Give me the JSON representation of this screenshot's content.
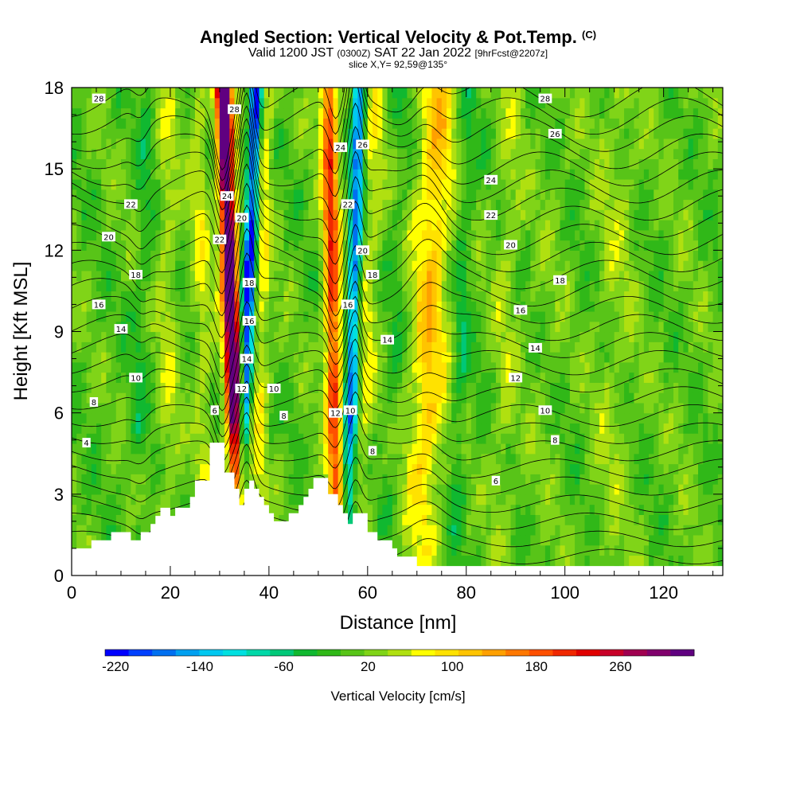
{
  "header": {
    "title_main": "Angled Section: Vertical Velocity & Pot.Temp.",
    "title_suffix": "(C)",
    "valid_prefix": "Valid 1200 JST",
    "valid_zulu": "(0300Z)",
    "valid_date": "SAT 22 Jan 2022",
    "forecast": "[9hrFcst@2207z]",
    "slice": "slice X,Y= 92,59@135°"
  },
  "chart_data": {
    "type": "heatmap",
    "xlabel": "Distance [nm]",
    "ylabel": "Height [Kft MSL]",
    "xlim": [
      0,
      132
    ],
    "ylim": [
      0,
      18
    ],
    "x_ticks": [
      0,
      20,
      40,
      60,
      80,
      100,
      120
    ],
    "y_ticks": [
      0,
      3,
      6,
      9,
      12,
      15,
      18
    ],
    "colorbar": {
      "label": "Vertical Velocity [cm/s]",
      "min": -230,
      "max": 330,
      "step": 20,
      "tick_values": [
        -220,
        -140,
        -60,
        20,
        100,
        180,
        260
      ],
      "tick_labels": [
        "-220",
        "-140",
        "-60",
        "20",
        "100",
        "180",
        "260"
      ],
      "colors": [
        "#0000ff",
        "#0040ff",
        "#0070f0",
        "#00a0f0",
        "#00c8f0",
        "#00e0e0",
        "#00d8a8",
        "#00c878",
        "#10b830",
        "#30b818",
        "#58c418",
        "#80d418",
        "#b0e010",
        "#ffff00",
        "#ffe200",
        "#ffc400",
        "#ffa000",
        "#ff7800",
        "#ff5000",
        "#f02800",
        "#e00000",
        "#c80028",
        "#a00050",
        "#80006c",
        "#600080"
      ]
    },
    "background_value": -20,
    "plumes": [
      {
        "x": 32.5,
        "v": 310,
        "w": 1.6,
        "lean": -0.2
      },
      {
        "x": 35.5,
        "v": -215,
        "w": 1.3,
        "lean": 0.22
      },
      {
        "x": 38.5,
        "v": 40,
        "w": 1.5,
        "lean": 0.1
      },
      {
        "x": 26.5,
        "v": 25,
        "w": 1.8,
        "lean": -0.1
      },
      {
        "x": 14.0,
        "v": -45,
        "w": 1.6,
        "lean": 0.15
      },
      {
        "x": 19.5,
        "v": 15,
        "w": 2.0,
        "lean": 0.0
      },
      {
        "x": 53.0,
        "v": 155,
        "w": 1.7,
        "lean": -0.1
      },
      {
        "x": 57.0,
        "v": -175,
        "w": 1.3,
        "lean": 0.15
      },
      {
        "x": 60.0,
        "v": 30,
        "w": 1.8,
        "lean": 0.2
      },
      {
        "x": 65.5,
        "v": -40,
        "w": 1.6,
        "lean": 0.2
      },
      {
        "x": 72.5,
        "v": 75,
        "w": 3.6,
        "lean": 0.2
      },
      {
        "x": 79.0,
        "v": -55,
        "w": 1.7,
        "lean": 0.15
      },
      {
        "x": 88.0,
        "v": 10,
        "w": 2.5,
        "lean": 0.15
      },
      {
        "x": 96.0,
        "v": -10,
        "w": 3.5,
        "lean": 0.2
      },
      {
        "x": 110.0,
        "v": 5,
        "w": 4.0,
        "lean": 0.1
      },
      {
        "x": 124.0,
        "v": -15,
        "w": 3.0,
        "lean": 0.1
      }
    ],
    "terrain": [
      [
        0,
        1
      ],
      [
        4,
        1
      ],
      [
        4,
        1.3
      ],
      [
        8,
        1.3
      ],
      [
        8,
        1.6
      ],
      [
        12,
        1.6
      ],
      [
        12,
        1.3
      ],
      [
        14,
        1.3
      ],
      [
        14,
        1.6
      ],
      [
        16,
        1.6
      ],
      [
        16,
        1.9
      ],
      [
        17,
        1.9
      ],
      [
        17,
        2.2
      ],
      [
        18,
        2.2
      ],
      [
        18,
        2.5
      ],
      [
        20,
        2.5
      ],
      [
        20,
        2.2
      ],
      [
        21,
        2.2
      ],
      [
        21,
        2.5
      ],
      [
        24,
        2.5
      ],
      [
        24,
        2.9
      ],
      [
        25,
        2.9
      ],
      [
        25,
        3.5
      ],
      [
        28,
        3.5
      ],
      [
        28,
        4.9
      ],
      [
        31,
        4.9
      ],
      [
        31,
        3.8
      ],
      [
        33,
        3.8
      ],
      [
        33,
        3.2
      ],
      [
        34,
        3.2
      ],
      [
        34,
        2.6
      ],
      [
        35,
        2.6
      ],
      [
        35,
        3.2
      ],
      [
        36,
        3.2
      ],
      [
        36,
        3.5
      ],
      [
        37,
        3.5
      ],
      [
        37,
        3.2
      ],
      [
        38,
        3.2
      ],
      [
        38,
        2.9
      ],
      [
        39,
        2.9
      ],
      [
        39,
        2.6
      ],
      [
        40,
        2.6
      ],
      [
        40,
        2.3
      ],
      [
        41,
        2.3
      ],
      [
        41,
        2.0
      ],
      [
        44,
        2.0
      ],
      [
        44,
        2.3
      ],
      [
        46,
        2.3
      ],
      [
        46,
        2.6
      ],
      [
        47,
        2.6
      ],
      [
        47,
        2.9
      ],
      [
        48,
        2.9
      ],
      [
        48,
        3.2
      ],
      [
        49,
        3.2
      ],
      [
        49,
        3.6
      ],
      [
        52,
        3.6
      ],
      [
        52,
        3.0
      ],
      [
        54,
        3.0
      ],
      [
        54,
        2.6
      ],
      [
        55,
        2.6
      ],
      [
        55,
        2.3
      ],
      [
        56,
        2.3
      ],
      [
        56,
        1.9
      ],
      [
        57,
        1.9
      ],
      [
        57,
        2.3
      ],
      [
        60,
        2.3
      ],
      [
        60,
        1.6
      ],
      [
        62,
        1.6
      ],
      [
        62,
        1.3
      ],
      [
        65,
        1.3
      ],
      [
        65,
        1.0
      ],
      [
        66,
        1.0
      ],
      [
        66,
        0.7
      ],
      [
        70,
        0.7
      ],
      [
        70,
        0.35
      ],
      [
        132,
        0.35
      ]
    ],
    "contour_levels": [
      2,
      3,
      4,
      5,
      6,
      7,
      8,
      9,
      10,
      11,
      12,
      13,
      14,
      15,
      16,
      17,
      18,
      19,
      20,
      21,
      22,
      23,
      24,
      25,
      26,
      27,
      28
    ],
    "labeled_levels": [
      4,
      6,
      8,
      10,
      12,
      14,
      16,
      18,
      20,
      22,
      24,
      26,
      28
    ],
    "contour_labels": [
      {
        "text": "28",
        "x": 5.5,
        "y": 17.6
      },
      {
        "text": "28",
        "x": 33.0,
        "y": 17.2
      },
      {
        "text": "28",
        "x": 96.0,
        "y": 17.6
      },
      {
        "text": "26",
        "x": 98.0,
        "y": 16.3
      },
      {
        "text": "24",
        "x": 54.5,
        "y": 15.8
      },
      {
        "text": "26",
        "x": 59.0,
        "y": 15.9
      },
      {
        "text": "24",
        "x": 85.0,
        "y": 14.6
      },
      {
        "text": "22",
        "x": 12.0,
        "y": 13.7
      },
      {
        "text": "24",
        "x": 31.5,
        "y": 14.0
      },
      {
        "text": "22",
        "x": 56.0,
        "y": 13.7
      },
      {
        "text": "22",
        "x": 85.0,
        "y": 13.3
      },
      {
        "text": "20",
        "x": 7.5,
        "y": 12.5
      },
      {
        "text": "20",
        "x": 34.5,
        "y": 13.2
      },
      {
        "text": "22",
        "x": 30.0,
        "y": 12.4
      },
      {
        "text": "20",
        "x": 59.0,
        "y": 12.0
      },
      {
        "text": "20",
        "x": 89.0,
        "y": 12.2
      },
      {
        "text": "18",
        "x": 13.0,
        "y": 11.1
      },
      {
        "text": "18",
        "x": 36.0,
        "y": 10.8
      },
      {
        "text": "18",
        "x": 61.0,
        "y": 11.1
      },
      {
        "text": "18",
        "x": 99.0,
        "y": 10.9
      },
      {
        "text": "16",
        "x": 5.5,
        "y": 10.0
      },
      {
        "text": "16",
        "x": 56.0,
        "y": 10.0
      },
      {
        "text": "16",
        "x": 91.0,
        "y": 9.8
      },
      {
        "text": "14",
        "x": 10.0,
        "y": 9.1
      },
      {
        "text": "16",
        "x": 36.0,
        "y": 9.4
      },
      {
        "text": "14",
        "x": 64.0,
        "y": 8.7
      },
      {
        "text": "14",
        "x": 94.0,
        "y": 8.4
      },
      {
        "text": "14",
        "x": 35.5,
        "y": 8.0
      },
      {
        "text": "10",
        "x": 13.0,
        "y": 7.3
      },
      {
        "text": "12",
        "x": 90.0,
        "y": 7.3
      },
      {
        "text": "12",
        "x": 34.5,
        "y": 6.9
      },
      {
        "text": "10",
        "x": 41.0,
        "y": 6.9
      },
      {
        "text": "8",
        "x": 4.5,
        "y": 6.4
      },
      {
        "text": "6",
        "x": 29.0,
        "y": 6.1
      },
      {
        "text": "8",
        "x": 43.0,
        "y": 5.9
      },
      {
        "text": "12",
        "x": 53.5,
        "y": 6.0
      },
      {
        "text": "10",
        "x": 56.5,
        "y": 6.1
      },
      {
        "text": "10",
        "x": 96.0,
        "y": 6.1
      },
      {
        "text": "4",
        "x": 3.0,
        "y": 4.9
      },
      {
        "text": "8",
        "x": 61.0,
        "y": 4.6
      },
      {
        "text": "8",
        "x": 98.0,
        "y": 5.0
      },
      {
        "text": "6",
        "x": 86.0,
        "y": 3.5
      }
    ]
  }
}
